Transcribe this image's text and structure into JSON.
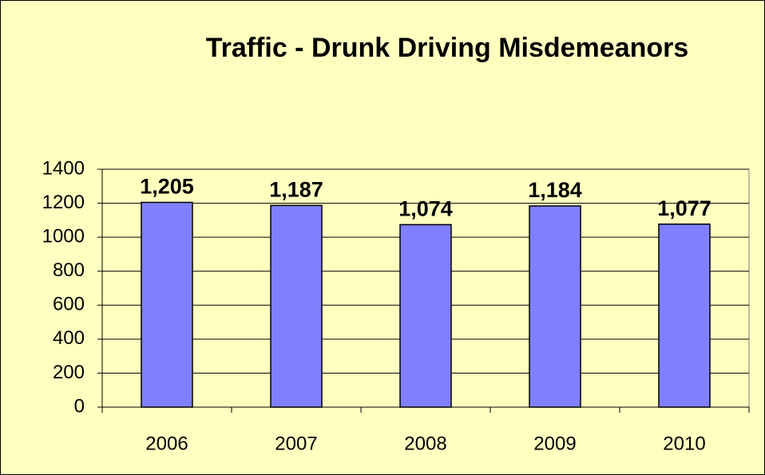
{
  "chart_data": {
    "type": "bar",
    "title": "Traffic - Drunk Driving Misdemeanors",
    "categories": [
      "2006",
      "2007",
      "2008",
      "2009",
      "2010"
    ],
    "values": [
      1205,
      1187,
      1074,
      1184,
      1077
    ],
    "value_labels": [
      "1,205",
      "1,187",
      "1,074",
      "1,184",
      "1,077"
    ],
    "color": "#8080ff",
    "ylim": [
      0,
      1400
    ],
    "yticks": [
      0,
      200,
      400,
      600,
      800,
      1000,
      1200,
      1400
    ],
    "grid": true
  }
}
